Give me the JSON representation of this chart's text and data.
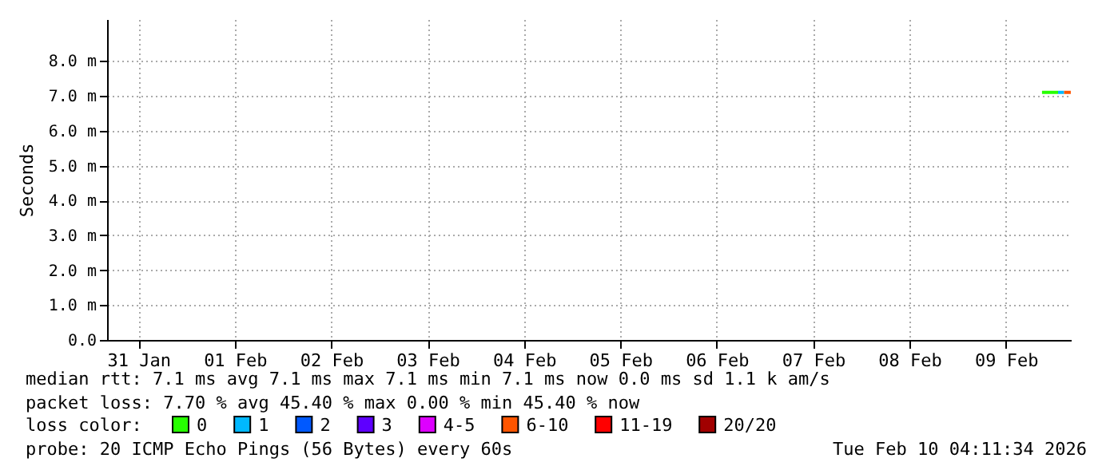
{
  "chart_data": {
    "type": "line",
    "ylabel": "Seconds",
    "legend_title": "loss color:",
    "legend": "bottom",
    "grid": true,
    "xlim": [
      "2026-01-31T04:11",
      "2026-02-10T04:11"
    ],
    "xticks": [
      {
        "value": "2026-01-31T12:00",
        "label": "31 Jan"
      },
      {
        "value": "2026-02-01T12:00",
        "label": "01 Feb"
      },
      {
        "value": "2026-02-02T12:00",
        "label": "02 Feb"
      },
      {
        "value": "2026-02-03T12:00",
        "label": "03 Feb"
      },
      {
        "value": "2026-02-04T12:00",
        "label": "04 Feb"
      },
      {
        "value": "2026-02-05T12:00",
        "label": "05 Feb"
      },
      {
        "value": "2026-02-06T12:00",
        "label": "06 Feb"
      },
      {
        "value": "2026-02-07T12:00",
        "label": "07 Feb"
      },
      {
        "value": "2026-02-08T12:00",
        "label": "08 Feb"
      },
      {
        "value": "2026-02-09T12:00",
        "label": "09 Feb"
      }
    ],
    "ylim": [
      0,
      9.2
    ],
    "yticks": [
      {
        "value": 0,
        "label": "0.0"
      },
      {
        "value": 1,
        "label": "1.0 m"
      },
      {
        "value": 2,
        "label": "2.0 m"
      },
      {
        "value": 3,
        "label": "3.0 m"
      },
      {
        "value": 4,
        "label": "4.0 m"
      },
      {
        "value": 5,
        "label": "5.0 m"
      },
      {
        "value": 6,
        "label": "6.0 m"
      },
      {
        "value": 7,
        "label": "7.0 m"
      },
      {
        "value": 8,
        "label": "8.0 m"
      }
    ],
    "series": [
      {
        "name": "0",
        "color": "#26ff00",
        "x": [
          "2026-02-09T21:00",
          "2026-02-10T01:00"
        ],
        "values": [
          7.1,
          7.1
        ]
      },
      {
        "name": "1",
        "color": "#00b8ff",
        "x": [
          "2026-02-10T01:00",
          "2026-02-10T02:30"
        ],
        "values": [
          7.1,
          7.1
        ]
      },
      {
        "name": "2",
        "color": "#0059ff"
      },
      {
        "name": "3",
        "color": "#5e00ff"
      },
      {
        "name": "4-5",
        "color": "#dd00ff"
      },
      {
        "name": "6-10",
        "color": "#ff5500",
        "x": [
          "2026-02-10T02:30",
          "2026-02-10T04:10"
        ],
        "values": [
          7.1,
          7.1
        ]
      },
      {
        "name": "11-19",
        "color": "#ff0000"
      },
      {
        "name": "20/20",
        "color": "#a10000"
      }
    ],
    "annotations": [
      "median rtt:  7.1 ms avg  7.1 ms max  7.1 ms min  7.1 ms now  0.0 ms sd  1.1 k am/s",
      "packet loss: 7.70 % avg  45.40 % max  0.00 % min  45.40 % now",
      "probe:       20 ICMP Echo Pings (56 Bytes) every 60s",
      "Tue Feb 10 04:11:34 2026"
    ]
  }
}
